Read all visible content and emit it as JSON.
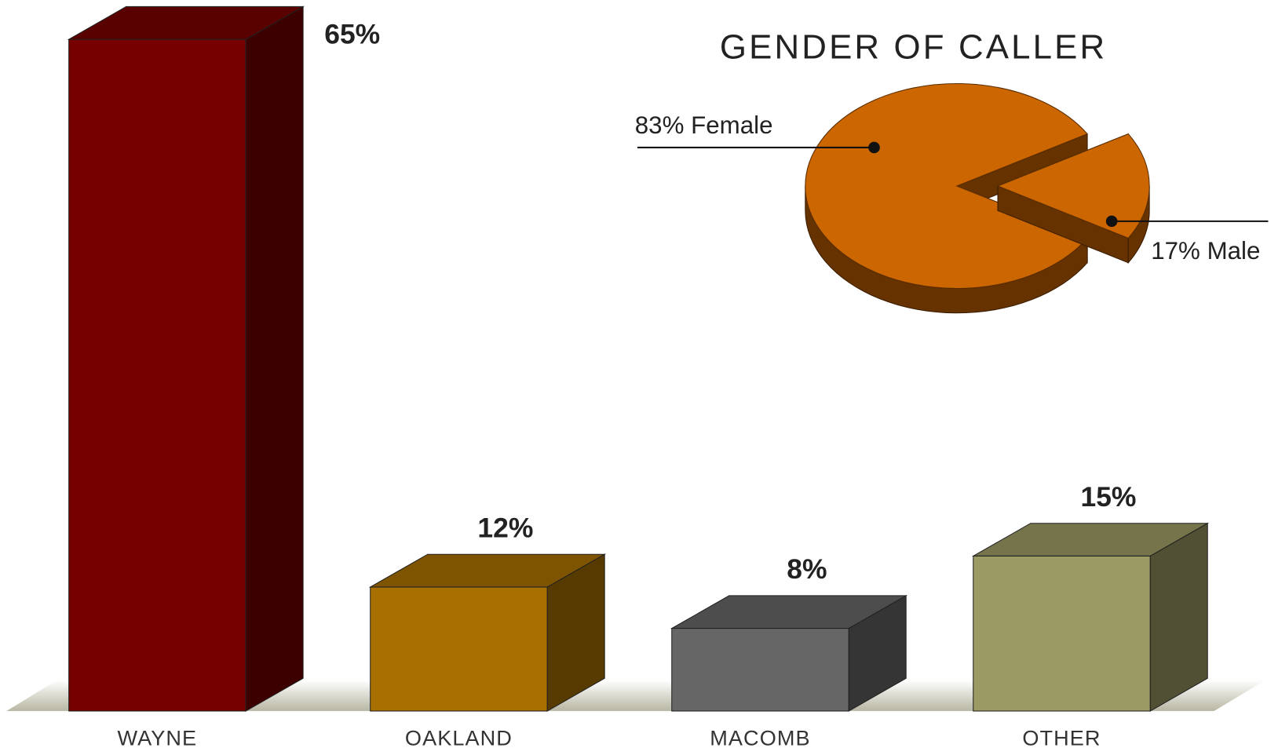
{
  "chart_data": [
    {
      "type": "bar3d",
      "categories": [
        "WAYNE",
        "OAKLAND",
        "MACOMB",
        "OTHER"
      ],
      "values": [
        65,
        12,
        8,
        15
      ],
      "value_labels": [
        "65%",
        "12%",
        "8%",
        "15%"
      ],
      "colors": [
        "#760000",
        "#a87000",
        "#666666",
        "#9c9a64"
      ]
    },
    {
      "type": "pie3d",
      "title": "GENDER OF CALLER",
      "labels": [
        "83% Female",
        "17% Male"
      ],
      "values": [
        83,
        17
      ],
      "color": "#cc6600"
    }
  ]
}
